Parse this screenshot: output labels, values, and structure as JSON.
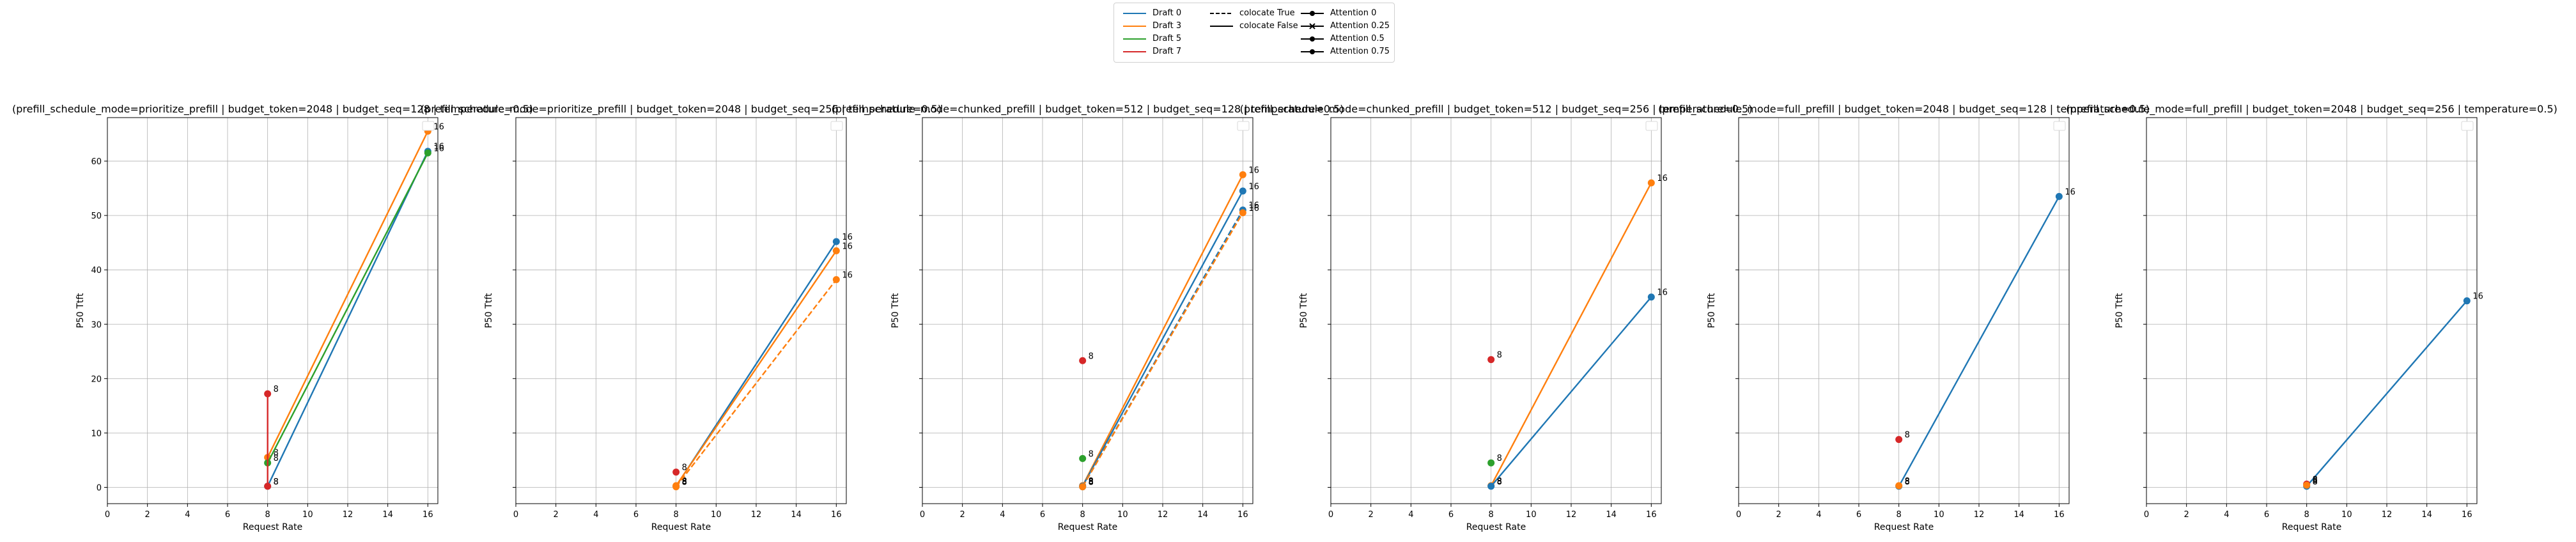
{
  "legend": {
    "draft": [
      {
        "label": "Draft 0",
        "color": "#1f77b4"
      },
      {
        "label": "Draft 3",
        "color": "#ff7f0e"
      },
      {
        "label": "Draft 5",
        "color": "#2ca02c"
      },
      {
        "label": "Draft 7",
        "color": "#d62728"
      }
    ],
    "colocate": [
      {
        "label": "colocate True",
        "dash": "dashed"
      },
      {
        "label": "colocate False",
        "dash": "solid"
      }
    ],
    "attention": [
      {
        "label": "Attention 0",
        "marker": "circle"
      },
      {
        "label": "Attention 0.25",
        "marker": "x"
      },
      {
        "label": "Attention 0.5",
        "marker": "circle"
      },
      {
        "label": "Attention 0.75",
        "marker": "circle"
      }
    ]
  },
  "chart_data": [
    {
      "type": "line",
      "title": "(prefill_schedule_mode=prioritize_prefill | budget_token=2048 | budget_seq=128 | temperature=0.5)",
      "xlabel": "Request Rate",
      "ylabel": "P50 Ttft",
      "xlim": [
        0,
        16.5
      ],
      "ylim": [
        -3,
        68
      ],
      "xticks": [
        0,
        2,
        4,
        6,
        8,
        10,
        12,
        14,
        16
      ],
      "yticks": [
        0,
        10,
        20,
        30,
        40,
        50,
        60
      ],
      "grid": true,
      "series": [
        {
          "name": "Draft 3",
          "color": "#ff7f0e",
          "dash": "solid",
          "points": [
            [
              8,
              5.5,
              "8"
            ],
            [
              16,
              65.5,
              "16"
            ]
          ]
        },
        {
          "name": "Draft 0",
          "color": "#1f77b4",
          "dash": "solid",
          "points": [
            [
              8,
              0.2,
              "8"
            ],
            [
              16,
              61.8,
              "16"
            ]
          ]
        },
        {
          "name": "Draft 5",
          "color": "#2ca02c",
          "dash": "solid",
          "points": [
            [
              8,
              4.5,
              "8"
            ],
            [
              16,
              61.5,
              "16"
            ]
          ]
        },
        {
          "name": "Draft 7",
          "color": "#d62728",
          "dash": "solid",
          "points": [
            [
              8,
              17.2,
              "8"
            ],
            [
              8,
              0.2,
              "8"
            ]
          ]
        }
      ]
    },
    {
      "type": "line",
      "title": "(prefill_schedule_mode=prioritize_prefill | budget_token=2048 | budget_seq=256 | temperature=0.5)",
      "xlabel": "Request Rate",
      "ylabel": "P50 Ttft",
      "xlim": [
        0,
        16.5
      ],
      "ylim": [
        -3,
        68
      ],
      "xticks": [
        0,
        2,
        4,
        6,
        8,
        10,
        12,
        14,
        16
      ],
      "yticks": [
        0,
        10,
        20,
        30,
        40,
        50,
        60
      ],
      "grid": true,
      "series": [
        {
          "name": "Draft 0",
          "color": "#1f77b4",
          "dash": "solid",
          "points": [
            [
              8,
              0.2,
              "8"
            ],
            [
              16,
              45.2,
              "16"
            ]
          ]
        },
        {
          "name": "Draft 3",
          "color": "#ff7f0e",
          "dash": "solid",
          "points": [
            [
              8,
              0.3,
              "8"
            ],
            [
              16,
              43.5,
              "16"
            ]
          ]
        },
        {
          "name": "Draft 3",
          "color": "#ff7f0e",
          "dash": "dashed",
          "points": [
            [
              8,
              0.1,
              "8"
            ],
            [
              16,
              38.2,
              "16"
            ]
          ]
        },
        {
          "name": "Draft 7",
          "color": "#d62728",
          "dash": "solid",
          "points": [
            [
              8,
              2.8,
              "8"
            ]
          ]
        }
      ]
    },
    {
      "type": "line",
      "title": "(prefill_schedule_mode=chunked_prefill | budget_token=512 | budget_seq=128 | temperature=0.5)",
      "xlabel": "Request Rate",
      "ylabel": "P50 Ttft",
      "xlim": [
        0,
        16.5
      ],
      "ylim": [
        -3,
        68
      ],
      "xticks": [
        0,
        2,
        4,
        6,
        8,
        10,
        12,
        14,
        16
      ],
      "yticks": [
        0,
        10,
        20,
        30,
        40,
        50,
        60
      ],
      "grid": true,
      "series": [
        {
          "name": "Draft 3",
          "color": "#ff7f0e",
          "dash": "solid",
          "points": [
            [
              8,
              0.3,
              "8"
            ],
            [
              16,
              57.5,
              "16"
            ]
          ]
        },
        {
          "name": "Draft 0",
          "color": "#1f77b4",
          "dash": "solid",
          "points": [
            [
              8,
              0.2,
              "8"
            ],
            [
              16,
              54.5,
              "16"
            ]
          ]
        },
        {
          "name": "Draft 0",
          "color": "#1f77b4",
          "dash": "dashed",
          "points": [
            [
              8,
              0.1,
              "8"
            ],
            [
              16,
              51.0,
              "16"
            ]
          ]
        },
        {
          "name": "Draft 3",
          "color": "#ff7f0e",
          "dash": "dashed",
          "points": [
            [
              8,
              0.1,
              "8"
            ],
            [
              16,
              50.5,
              "16"
            ]
          ]
        },
        {
          "name": "Draft 5",
          "color": "#2ca02c",
          "dash": "solid",
          "points": [
            [
              8,
              5.3,
              "8"
            ]
          ]
        },
        {
          "name": "Draft 7",
          "color": "#d62728",
          "dash": "solid",
          "points": [
            [
              8,
              23.3,
              "8"
            ]
          ]
        }
      ]
    },
    {
      "type": "line",
      "title": "(prefill_schedule_mode=chunked_prefill | budget_token=512 | budget_seq=256 | temperature=0.5)",
      "xlabel": "Request Rate",
      "ylabel": "P50 Ttft",
      "xlim": [
        0,
        16.5
      ],
      "ylim": [
        -3,
        68
      ],
      "xticks": [
        0,
        2,
        4,
        6,
        8,
        10,
        12,
        14,
        16
      ],
      "yticks": [
        0,
        10,
        20,
        30,
        40,
        50,
        60
      ],
      "grid": true,
      "series": [
        {
          "name": "Draft 3",
          "color": "#ff7f0e",
          "dash": "solid",
          "points": [
            [
              8,
              0.3,
              "8"
            ],
            [
              16,
              56.0,
              "16"
            ]
          ]
        },
        {
          "name": "Draft 0",
          "color": "#1f77b4",
          "dash": "solid",
          "points": [
            [
              8,
              0.2,
              "8"
            ],
            [
              16,
              35.0,
              "16"
            ]
          ]
        },
        {
          "name": "Draft 5",
          "color": "#2ca02c",
          "dash": "solid",
          "points": [
            [
              8,
              4.5,
              "8"
            ]
          ]
        },
        {
          "name": "Draft 7",
          "color": "#d62728",
          "dash": "solid",
          "points": [
            [
              8,
              23.5,
              "8"
            ]
          ]
        }
      ]
    },
    {
      "type": "line",
      "title": "(prefill_schedule_mode=full_prefill | budget_token=2048 | budget_seq=128 | temperature=0.5)",
      "xlabel": "Request Rate",
      "ylabel": "P50 Ttft",
      "xlim": [
        0,
        16.5
      ],
      "ylim": [
        -3,
        68
      ],
      "xticks": [
        0,
        2,
        4,
        6,
        8,
        10,
        12,
        14,
        16
      ],
      "yticks": [
        0,
        10,
        20,
        30,
        40,
        50,
        60
      ],
      "grid": true,
      "series": [
        {
          "name": "Draft 0",
          "color": "#1f77b4",
          "dash": "solid",
          "points": [
            [
              8,
              0.2,
              "8"
            ],
            [
              16,
              53.5,
              "16"
            ]
          ]
        },
        {
          "name": "Draft 7",
          "color": "#d62728",
          "dash": "solid",
          "points": [
            [
              8,
              8.8,
              "8"
            ]
          ]
        },
        {
          "name": "Draft 3",
          "color": "#ff7f0e",
          "dash": "solid",
          "points": [
            [
              8,
              0.3,
              "8"
            ]
          ]
        }
      ]
    },
    {
      "type": "line",
      "title": "(prefill_schedule_mode=full_prefill | budget_token=2048 | budget_seq=256 | temperature=0.5)",
      "xlabel": "Request Rate",
      "ylabel": "P50 Ttft",
      "xlim": [
        0,
        16.5
      ],
      "ylim": [
        -3,
        68
      ],
      "xticks": [
        0,
        2,
        4,
        6,
        8,
        10,
        12,
        14,
        16
      ],
      "yticks": [
        0,
        10,
        20,
        30,
        40,
        50,
        60
      ],
      "grid": true,
      "series": [
        {
          "name": "Draft 0",
          "color": "#1f77b4",
          "dash": "solid",
          "points": [
            [
              8,
              0.2,
              "8"
            ],
            [
              16,
              34.3,
              "16"
            ]
          ]
        },
        {
          "name": "Draft 7",
          "color": "#d62728",
          "dash": "solid",
          "points": [
            [
              8,
              0.6,
              "8"
            ]
          ]
        },
        {
          "name": "Draft 3",
          "color": "#ff7f0e",
          "dash": "solid",
          "points": [
            [
              8,
              0.4,
              "8"
            ]
          ]
        }
      ]
    }
  ]
}
